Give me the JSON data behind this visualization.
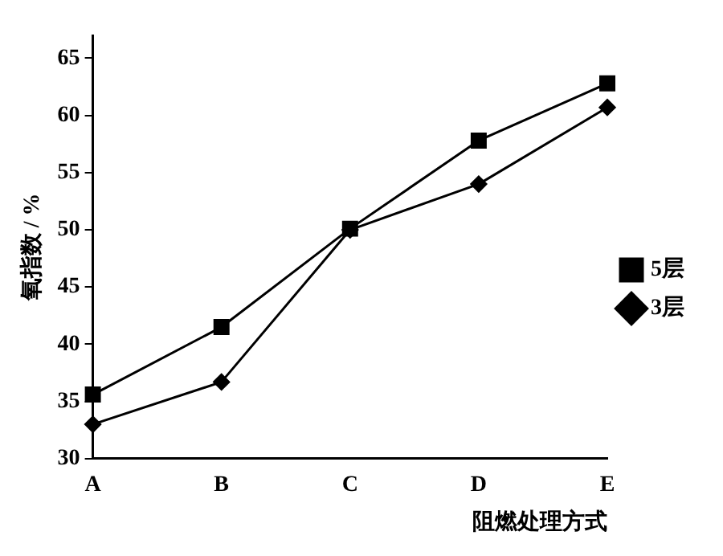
{
  "chart_data": {
    "type": "line",
    "xlabel": "阻燃处理方式",
    "ylabel": "氧指数 / %",
    "categories": [
      "A",
      "B",
      "C",
      "D",
      "E"
    ],
    "series": [
      {
        "name": "3层",
        "color": "#000000",
        "marker": "diamond",
        "values": [
          33.0,
          36.7,
          50.0,
          54.0,
          60.7
        ]
      },
      {
        "name": "5层",
        "color": "#000000",
        "marker": "square",
        "values": [
          35.6,
          41.5,
          50.1,
          57.8,
          62.8
        ]
      }
    ],
    "ylim": [
      30,
      67
    ],
    "yticks": [
      30,
      35,
      40,
      45,
      50,
      55,
      60,
      65
    ],
    "grid": false,
    "legend": "right",
    "line_style": "solid"
  }
}
